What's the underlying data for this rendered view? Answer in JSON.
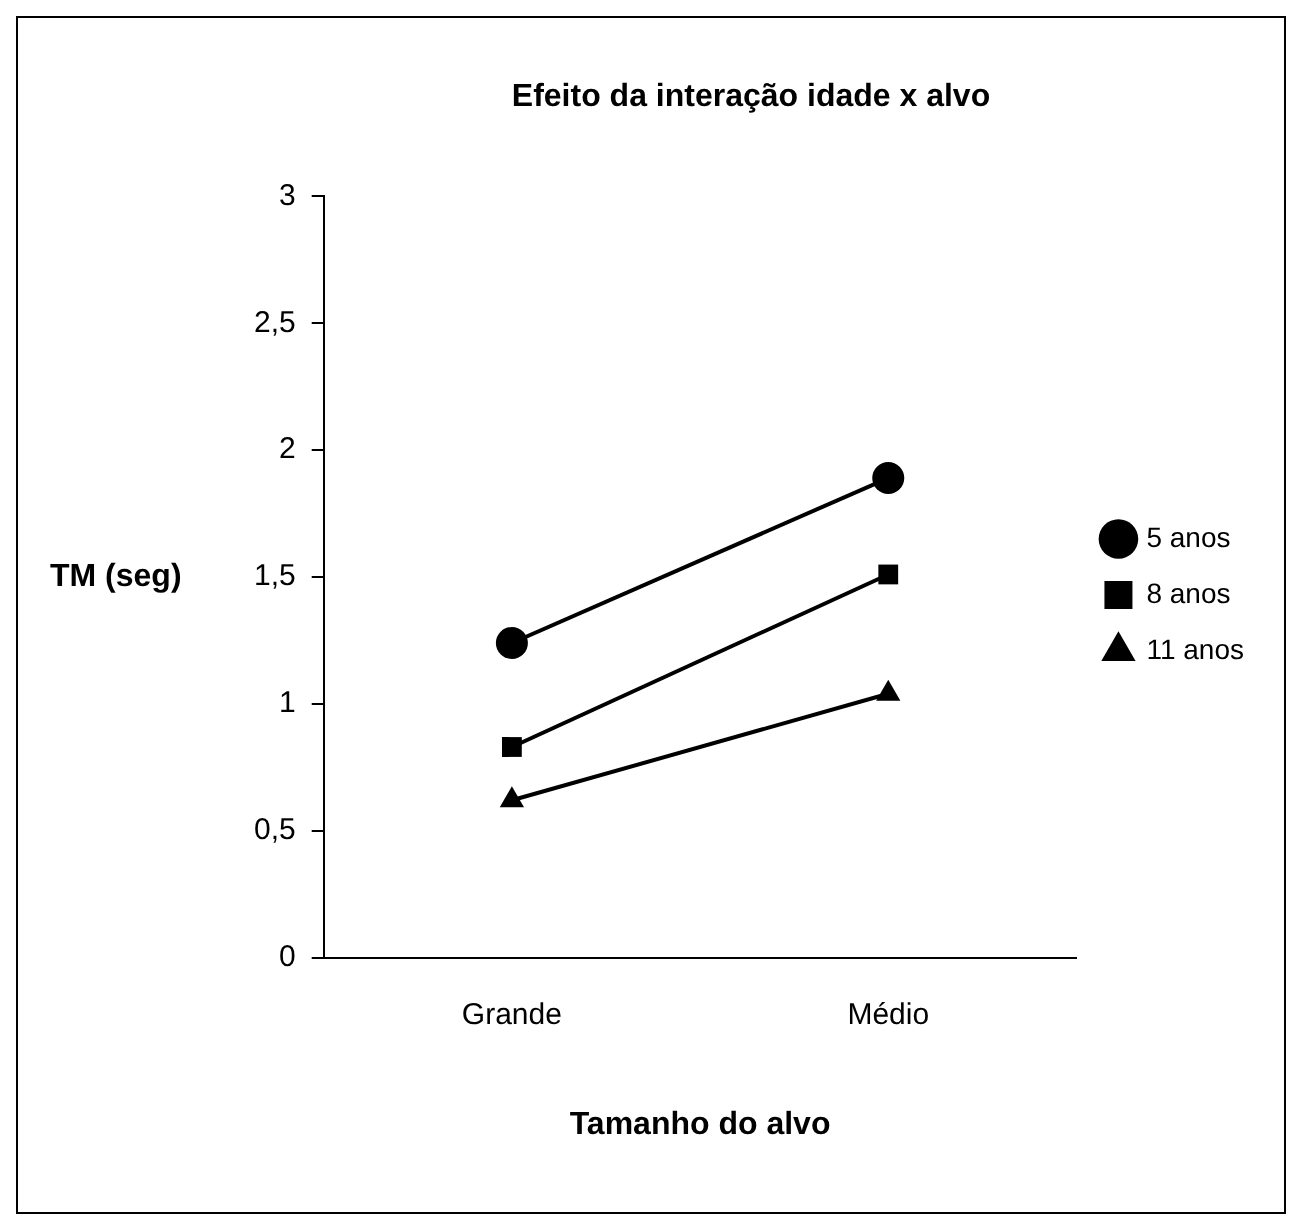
{
  "chart_data": {
    "type": "line",
    "title": "Efeito da interação idade x alvo",
    "xlabel": "Tamanho do alvo",
    "ylabel": "TM (seg)",
    "categories": [
      "Grande",
      "Médio"
    ],
    "series": [
      {
        "name": "5 anos",
        "color": "#000000",
        "values": [
          1.24,
          1.89
        ],
        "marker": "circle"
      },
      {
        "name": "8 anos",
        "color": "#000000",
        "values": [
          0.83,
          1.51
        ],
        "marker": "square"
      },
      {
        "name": "11 anos",
        "color": "#000000",
        "values": [
          0.62,
          1.04
        ],
        "marker": "triangle"
      }
    ],
    "ylim": [
      0,
      3
    ],
    "yticks": [
      0,
      {
        "value": 0.5,
        "label": "0,5"
      },
      1,
      {
        "value": 1.5,
        "label": "1,5"
      },
      2,
      {
        "value": 2.5,
        "label": "2,5"
      },
      3
    ],
    "grid": false,
    "legend": "right",
    "line_style": "solid"
  }
}
